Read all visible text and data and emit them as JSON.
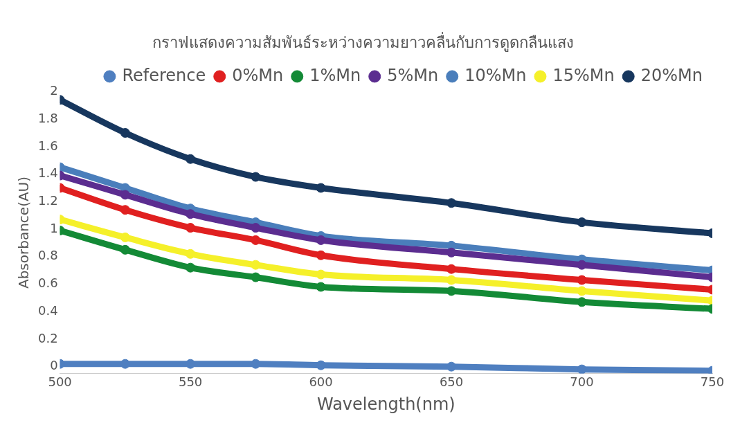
{
  "chart_data": {
    "type": "line",
    "title": "กราฟแสดงความสัมพันธ์ระหว่างความยาวคลื่นกับการดูดกลืนแสง",
    "xlabel": "Wavelength(nm)",
    "ylabel": "Absorbance(AU)",
    "x": [
      500,
      525,
      550,
      575,
      600,
      650,
      700,
      750
    ],
    "xlim": [
      500,
      750
    ],
    "xticks": [
      500,
      550,
      600,
      650,
      700,
      750
    ],
    "ylim": [
      -0.05,
      2
    ],
    "yticks": [
      0,
      0.2,
      0.4,
      0.6,
      0.8,
      1,
      1.2,
      1.4,
      1.6,
      1.8,
      2
    ],
    "grid": false,
    "legend": "top right",
    "marker": "circle",
    "line_style": "solid",
    "series": [
      {
        "name": "Reference",
        "color": "#4f7fc0",
        "values": [
          0.02,
          0.02,
          0.02,
          0.02,
          0.01,
          0.0,
          -0.02,
          -0.03
        ]
      },
      {
        "name": "0%Mn",
        "color": "#e02020",
        "values": [
          1.3,
          1.14,
          1.01,
          0.92,
          0.81,
          0.71,
          0.63,
          0.56
        ]
      },
      {
        "name": "1%Mn",
        "color": "#138a36",
        "values": [
          0.99,
          0.85,
          0.72,
          0.65,
          0.58,
          0.55,
          0.47,
          0.42
        ]
      },
      {
        "name": "5%Mn",
        "color": "#5b2d90",
        "values": [
          1.39,
          1.25,
          1.11,
          1.01,
          0.92,
          0.83,
          0.74,
          0.65
        ]
      },
      {
        "name": "10%Mn",
        "color": "#4a7ebb",
        "values": [
          1.45,
          1.3,
          1.15,
          1.05,
          0.95,
          0.88,
          0.78,
          0.7
        ]
      },
      {
        "name": "15%Mn",
        "color": "#f5f02a",
        "values": [
          1.07,
          0.94,
          0.82,
          0.74,
          0.67,
          0.63,
          0.55,
          0.48
        ]
      },
      {
        "name": "20%Mn",
        "color": "#17375e",
        "values": [
          1.94,
          1.7,
          1.51,
          1.38,
          1.3,
          1.19,
          1.05,
          0.97
        ]
      }
    ]
  }
}
